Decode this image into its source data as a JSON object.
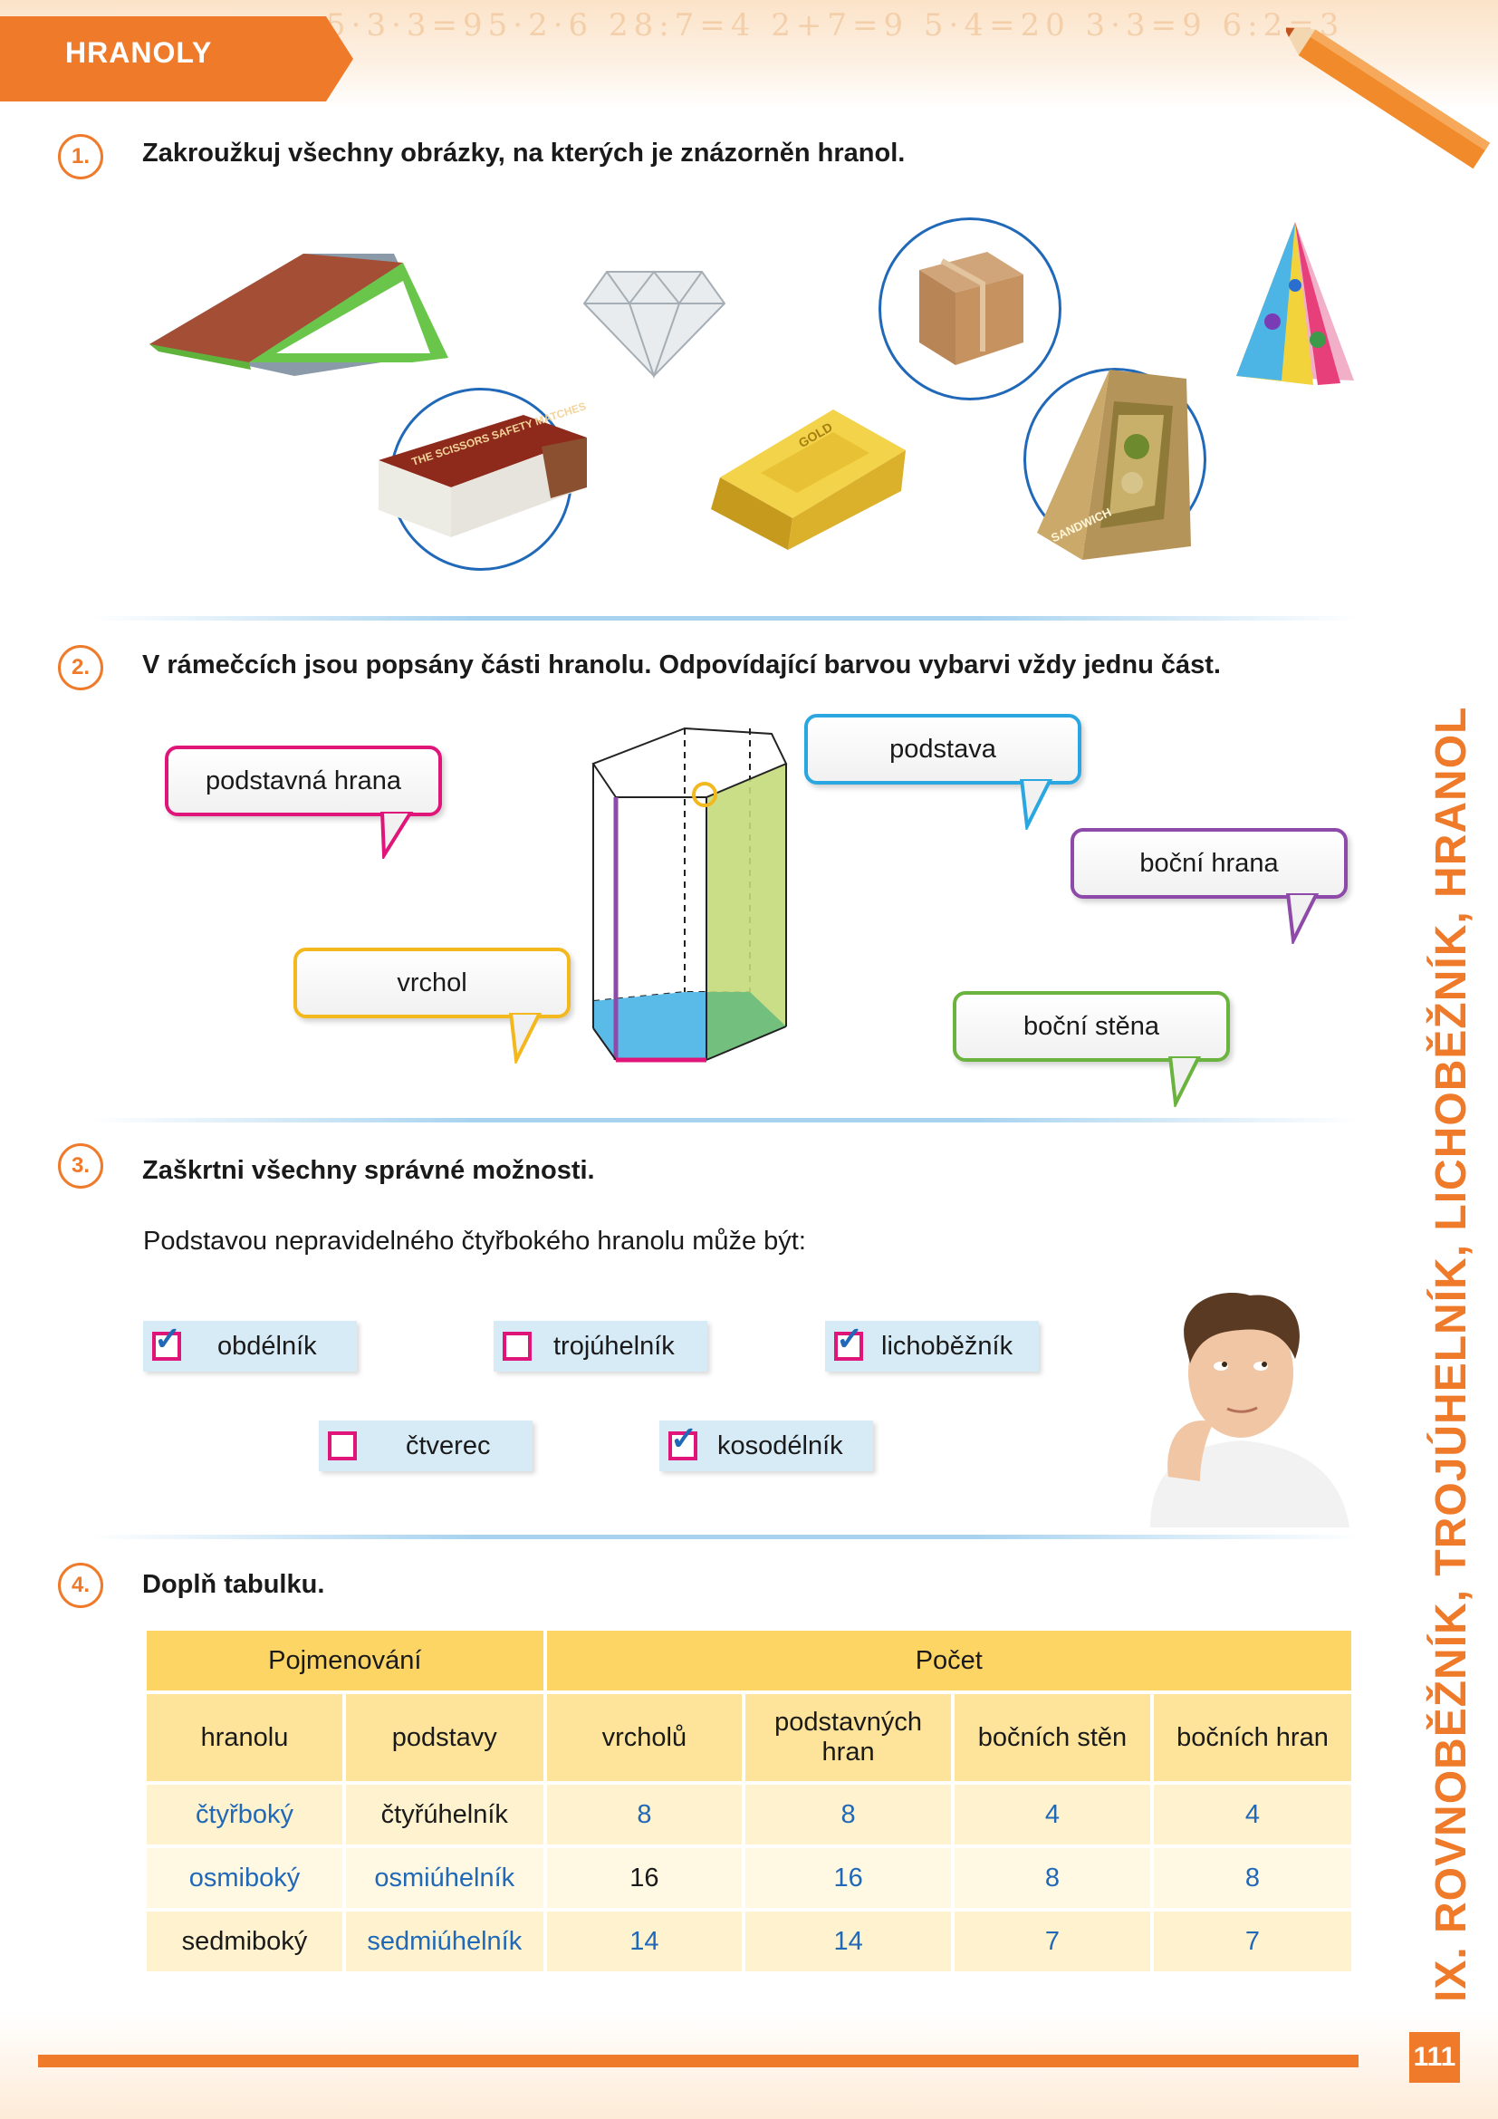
{
  "header": {
    "tab_label": "HRANOLY",
    "doodle": "5·3·3=95·2·6  28:7=4  2+7=9  5·4=20  3·3=9  6:2=3"
  },
  "side_title": "IX. ROVNOBĚŽNÍK, TROJÚHELNÍK, LICHOBĚŽNÍK, HRANOL",
  "page_number": "111",
  "tasks": [
    {
      "number": "1.",
      "title": "Zakroužkuj všechny obrázky, na kterých je znázorněn hranol."
    },
    {
      "number": "2.",
      "title": "V rámečcích jsou popsány části hranolu. Odpovídající barvou vybarvi vždy jednu část."
    },
    {
      "number": "3.",
      "title": "Zaškrtni všechny správné možnosti."
    },
    {
      "number": "4.",
      "title": "Doplň tabulku."
    }
  ],
  "task1": {
    "images": [
      {
        "name": "roof",
        "circled": false
      },
      {
        "name": "diamond",
        "circled": false
      },
      {
        "name": "cardboard-box",
        "circled": true
      },
      {
        "name": "party-hat",
        "circled": false
      },
      {
        "name": "matchbox",
        "circled": true,
        "text": "THE SCISSORS SAFETY MATCHES"
      },
      {
        "name": "gold-bar",
        "circled": false,
        "text": "GOLD"
      },
      {
        "name": "sandwich-box",
        "circled": true,
        "text": "SANDWICH"
      }
    ]
  },
  "task2": {
    "labels": {
      "podstavna_hrana": "podstavná hrana",
      "podstava": "podstava",
      "bocni_hrana": "boční hrana",
      "vrchol": "vrchol",
      "bocni_stena": "boční stěna"
    },
    "colors": {
      "podstavna_hrana": "#e0157a",
      "podstava": "#2aa7e0",
      "bocni_hrana": "#8e4aa8",
      "vrchol": "#f2b81e",
      "bocni_stena": "#6ab33e"
    }
  },
  "task3": {
    "question": "Podstavou nepravidelného čtyřbokého hranolu může být:",
    "options": [
      {
        "label": "obdélník",
        "checked": true
      },
      {
        "label": "trojúhelník",
        "checked": false
      },
      {
        "label": "lichoběžník",
        "checked": true
      },
      {
        "label": "čtverec",
        "checked": false
      },
      {
        "label": "kosodélník",
        "checked": true
      }
    ],
    "check_glyph": "✓"
  },
  "task4": {
    "group_headers": [
      "Pojmenování",
      "Počet"
    ],
    "col_headers": [
      "hranolu",
      "podstavy",
      "vrcholů",
      "podstavných hran",
      "bočních stěn",
      "bočních hran"
    ],
    "rows": [
      {
        "cells": [
          "čtyřboký",
          "čtyřúhelník",
          "8",
          "8",
          "4",
          "4"
        ],
        "answers": [
          true,
          false,
          true,
          true,
          true,
          true
        ]
      },
      {
        "cells": [
          "osmiboký",
          "osmiúhelník",
          "16",
          "16",
          "8",
          "8"
        ],
        "answers": [
          true,
          true,
          false,
          true,
          true,
          true
        ]
      },
      {
        "cells": [
          "sedmiboký",
          "sedmiúhelník",
          "14",
          "14",
          "7",
          "7"
        ],
        "answers": [
          false,
          true,
          true,
          true,
          true,
          true
        ]
      }
    ]
  }
}
